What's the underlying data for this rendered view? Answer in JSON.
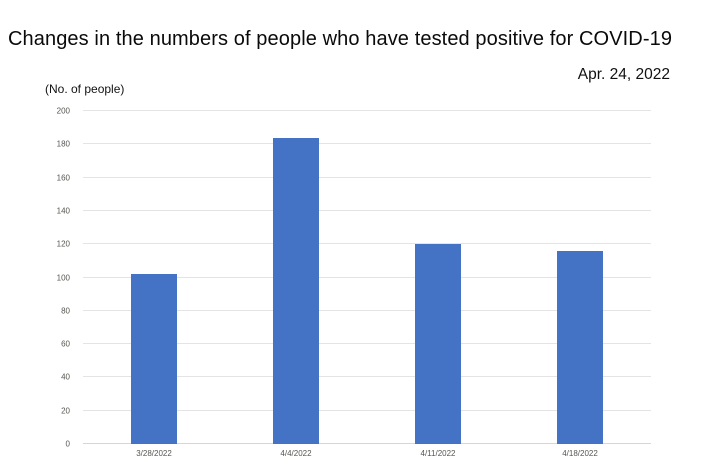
{
  "header": {
    "title": "Changes in the numbers of people who have tested positive for COVID-19",
    "date_label": "Apr. 24, 2022"
  },
  "chart_data": {
    "type": "bar",
    "title": "Changes in the numbers of people who have tested positive for COVID-19",
    "annotation_date": "Apr. 24, 2022",
    "ylabel": "(No. of people)",
    "xlabel": "",
    "categories": [
      "3/28/2022",
      "4/4/2022",
      "4/11/2022",
      "4/18/2022"
    ],
    "values": [
      102,
      184,
      120,
      116
    ],
    "ylim": [
      0,
      200
    ],
    "ytick_interval": 20,
    "grid": true,
    "legend_position": "none",
    "bar_color": "#4472C4",
    "gridline_color": "#e4e4e4",
    "axis_line_color": "#d6d6d6",
    "tick_label_color": "#555550"
  }
}
